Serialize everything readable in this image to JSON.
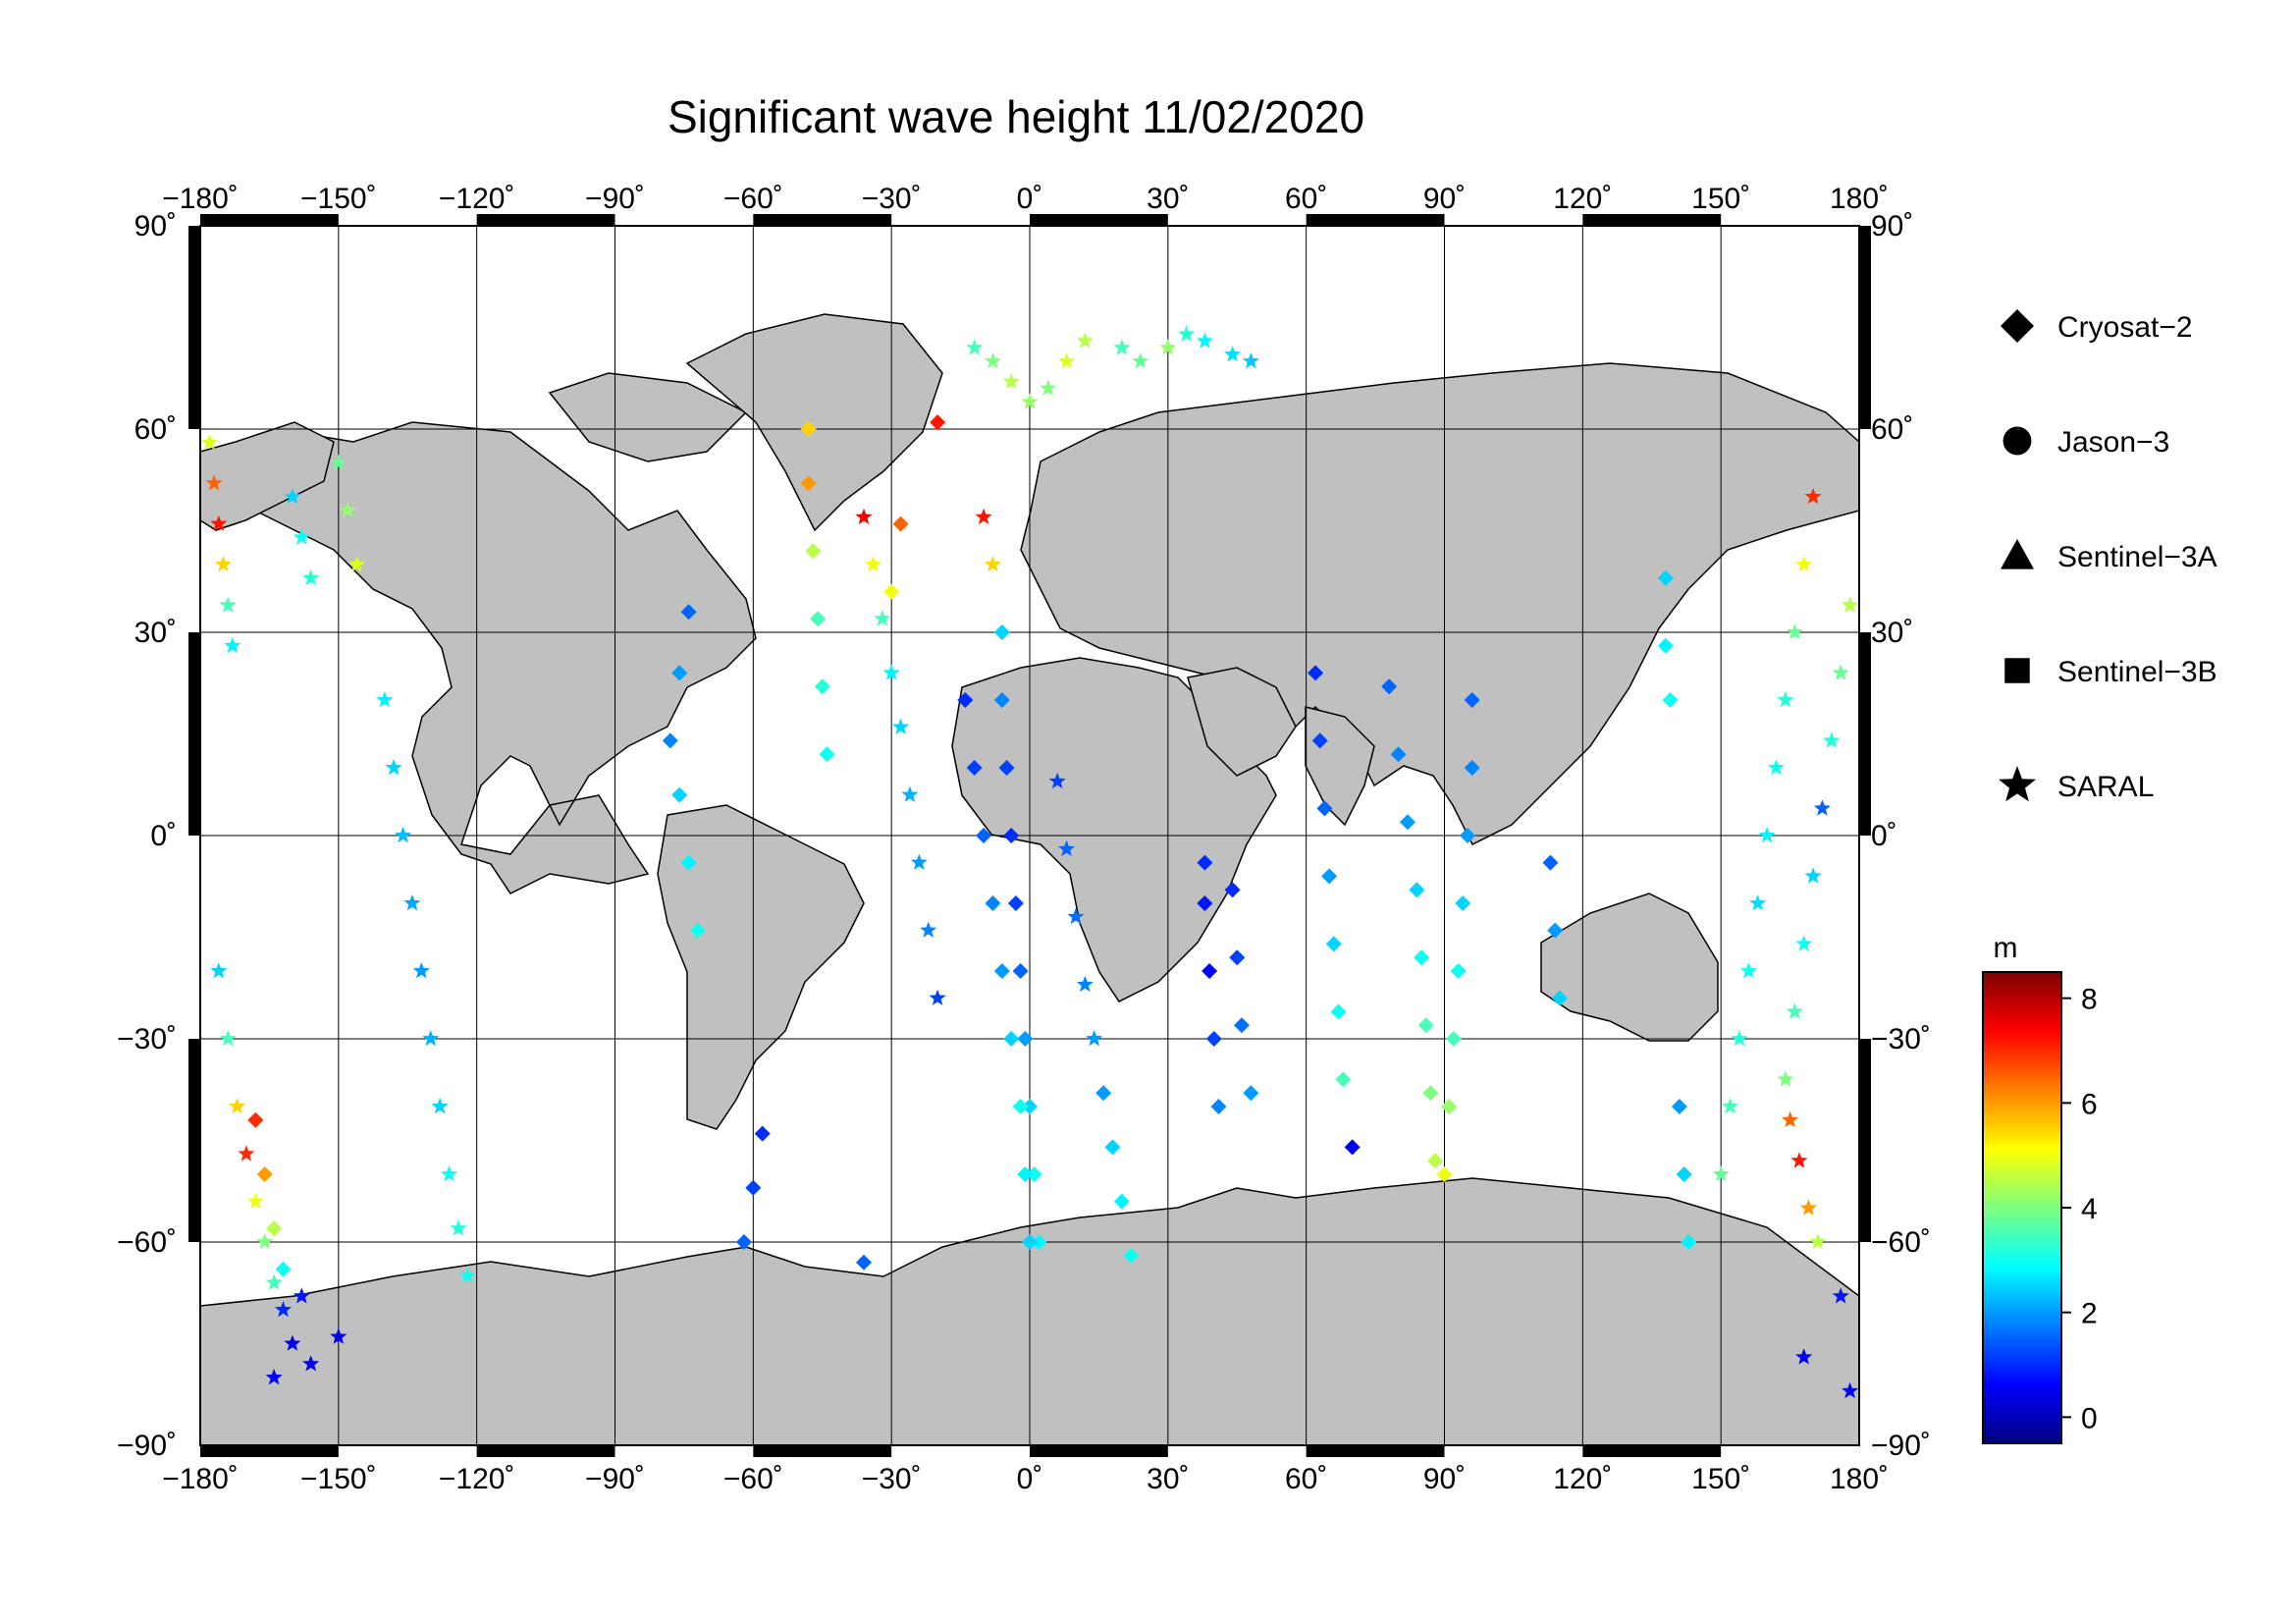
{
  "title": "Significant wave height 11/02/2020",
  "axes": {
    "lon_labels": [
      "−180˚",
      "−150˚",
      "−120˚",
      "−90˚",
      "−60˚",
      "−30˚",
      "0˚",
      "30˚",
      "60˚",
      "90˚",
      "120˚",
      "150˚",
      "180˚"
    ],
    "lat_labels": [
      "90˚",
      "60˚",
      "30˚",
      "0˚",
      "−30˚",
      "−60˚",
      "−90˚"
    ],
    "lon_values": [
      -180,
      -150,
      -120,
      -90,
      -60,
      -30,
      0,
      30,
      60,
      90,
      120,
      150,
      180
    ],
    "lat_values": [
      90,
      60,
      30,
      0,
      -30,
      -60,
      -90
    ]
  },
  "legend": [
    {
      "label": "Cryosat−2",
      "symbol": "diamond-icon"
    },
    {
      "label": "Jason−3",
      "symbol": "circle-icon"
    },
    {
      "label": "Sentinel−3A",
      "symbol": "triangle-icon"
    },
    {
      "label": "Sentinel−3B",
      "symbol": "square-icon"
    },
    {
      "label": "SARAL",
      "symbol": "star-icon"
    }
  ],
  "colorbar": {
    "unit": "m",
    "tick_labels": [
      "8",
      "6",
      "4",
      "2",
      "0"
    ],
    "tick_values": [
      8,
      6,
      4,
      2,
      0
    ],
    "range": [
      -0.5,
      8.5
    ],
    "colormap": [
      "#00007f",
      "#0000ff",
      "#007fff",
      "#00ffff",
      "#7fff7f",
      "#ffff00",
      "#ff7f00",
      "#ff0000",
      "#7f0000"
    ]
  },
  "colors": {
    "land": "#c0c0c0",
    "ocean": "#ffffff",
    "frame": "#000000"
  },
  "chart_data": {
    "type": "scatter",
    "projection": "equirectangular",
    "xlim": [
      -180,
      180
    ],
    "ylim": [
      -90,
      90
    ],
    "grid": true,
    "legend_position": "right",
    "series": [
      {
        "name": "SARAL",
        "marker": "star",
        "points": [
          [
            -178,
            58,
            4.8
          ],
          [
            -177,
            52,
            6.5
          ],
          [
            -176,
            46,
            7.2
          ],
          [
            -175,
            40,
            5.5
          ],
          [
            -174,
            34,
            3.5
          ],
          [
            -173,
            28,
            2.8
          ],
          [
            -160,
            50,
            2.5
          ],
          [
            -158,
            44,
            3.0
          ],
          [
            -156,
            38,
            3.2
          ],
          [
            -150,
            55,
            3.8
          ],
          [
            -148,
            48,
            4.2
          ],
          [
            -146,
            40,
            4.8
          ],
          [
            -140,
            20,
            2.8
          ],
          [
            -138,
            10,
            2.5
          ],
          [
            -136,
            0,
            2.3
          ],
          [
            -134,
            -10,
            2.1
          ],
          [
            -132,
            -20,
            2.0
          ],
          [
            -130,
            -30,
            2.2
          ],
          [
            -128,
            -40,
            2.5
          ],
          [
            -126,
            -50,
            3.0
          ],
          [
            -124,
            -58,
            3.2
          ],
          [
            -122,
            -65,
            3.0
          ],
          [
            -176,
            -20,
            2.5
          ],
          [
            -174,
            -30,
            3.5
          ],
          [
            -172,
            -40,
            5.5
          ],
          [
            -170,
            -47,
            7.0
          ],
          [
            -168,
            -54,
            5.0
          ],
          [
            -166,
            -60,
            4.0
          ],
          [
            -164,
            -66,
            3.5
          ],
          [
            -162,
            -70,
            1.0
          ],
          [
            -158,
            -68,
            0.8
          ],
          [
            -150,
            -74,
            0.5
          ],
          [
            -156,
            -78,
            0.4
          ],
          [
            -164,
            -80,
            0.6
          ],
          [
            -12,
            72,
            3.5
          ],
          [
            -8,
            70,
            4.0
          ],
          [
            -4,
            67,
            4.5
          ],
          [
            0,
            64,
            4.2
          ],
          [
            4,
            66,
            4.0
          ],
          [
            8,
            70,
            4.8
          ],
          [
            12,
            73,
            4.5
          ],
          [
            20,
            72,
            3.5
          ],
          [
            24,
            70,
            3.8
          ],
          [
            30,
            72,
            4.2
          ],
          [
            34,
            74,
            3.2
          ],
          [
            38,
            73,
            2.8
          ],
          [
            44,
            71,
            2.6
          ],
          [
            48,
            70,
            2.4
          ],
          [
            -36,
            47,
            7.5
          ],
          [
            -34,
            40,
            5.0
          ],
          [
            -32,
            32,
            3.5
          ],
          [
            -30,
            24,
            2.8
          ],
          [
            -28,
            16,
            2.5
          ],
          [
            -26,
            6,
            2.2
          ],
          [
            -24,
            -4,
            2.0
          ],
          [
            -22,
            -14,
            1.8
          ],
          [
            -20,
            -24,
            1.2
          ],
          [
            -10,
            47,
            7.2
          ],
          [
            -8,
            40,
            5.5
          ],
          [
            6,
            8,
            1.2
          ],
          [
            8,
            -2,
            1.5
          ],
          [
            10,
            -12,
            1.6
          ],
          [
            12,
            -22,
            1.8
          ],
          [
            14,
            -30,
            2.0
          ],
          [
            170,
            50,
            7.0
          ],
          [
            168,
            40,
            5.0
          ],
          [
            166,
            30,
            3.8
          ],
          [
            164,
            20,
            3.2
          ],
          [
            162,
            10,
            3.0
          ],
          [
            160,
            0,
            2.8
          ],
          [
            158,
            -10,
            2.6
          ],
          [
            156,
            -20,
            3.0
          ],
          [
            154,
            -30,
            3.2
          ],
          [
            152,
            -40,
            3.5
          ],
          [
            150,
            -50,
            3.8
          ],
          [
            178,
            34,
            4.5
          ],
          [
            176,
            24,
            3.8
          ],
          [
            174,
            14,
            3.2
          ],
          [
            172,
            4,
            1.5
          ],
          [
            170,
            -6,
            2.5
          ],
          [
            168,
            -16,
            3.0
          ],
          [
            166,
            -26,
            3.5
          ],
          [
            164,
            -36,
            4.0
          ],
          [
            165,
            -42,
            6.5
          ],
          [
            167,
            -48,
            7.2
          ],
          [
            169,
            -55,
            6.0
          ],
          [
            171,
            -60,
            4.5
          ],
          [
            -160,
            -75,
            0.5
          ],
          [
            168,
            -77,
            0.5
          ],
          [
            178,
            -82,
            0.6
          ],
          [
            176,
            -68,
            0.8
          ]
        ]
      },
      {
        "name": "Cryosat-2",
        "marker": "diamond",
        "points": [
          [
            -48,
            60,
            5.5
          ],
          [
            -48,
            52,
            6.0
          ],
          [
            -47,
            42,
            4.5
          ],
          [
            -46,
            32,
            3.5
          ],
          [
            -45,
            22,
            3.2
          ],
          [
            -44,
            12,
            3.0
          ],
          [
            -20,
            61,
            7.2
          ],
          [
            -28,
            46,
            6.5
          ],
          [
            -30,
            36,
            5.0
          ],
          [
            -6,
            30,
            2.5
          ],
          [
            -6,
            20,
            1.8
          ],
          [
            -5,
            10,
            1.2
          ],
          [
            -4,
            0,
            1.0
          ],
          [
            -3,
            -10,
            1.2
          ],
          [
            -2,
            -20,
            1.5
          ],
          [
            -1,
            -30,
            2.0
          ],
          [
            0,
            -40,
            2.5
          ],
          [
            1,
            -50,
            3.0
          ],
          [
            2,
            -60,
            2.8
          ],
          [
            -14,
            20,
            1.0
          ],
          [
            -12,
            10,
            1.2
          ],
          [
            -10,
            0,
            1.5
          ],
          [
            -8,
            -10,
            1.8
          ],
          [
            -6,
            -20,
            2.0
          ],
          [
            -4,
            -30,
            2.5
          ],
          [
            -2,
            -40,
            3.0
          ],
          [
            -1,
            -50,
            2.8
          ],
          [
            0,
            -60,
            2.5
          ],
          [
            16,
            -38,
            2.0
          ],
          [
            18,
            -46,
            2.5
          ],
          [
            20,
            -54,
            2.8
          ],
          [
            22,
            -62,
            3.0
          ],
          [
            38,
            -4,
            1.0
          ],
          [
            38,
            -10,
            0.8
          ],
          [
            39,
            -20,
            0.6
          ],
          [
            40,
            -30,
            1.2
          ],
          [
            41,
            -40,
            1.8
          ],
          [
            44,
            -8,
            1.0
          ],
          [
            45,
            -18,
            1.2
          ],
          [
            46,
            -28,
            1.6
          ],
          [
            48,
            -38,
            2.0
          ],
          [
            62,
            24,
            1.0
          ],
          [
            63,
            14,
            1.2
          ],
          [
            64,
            4,
            1.5
          ],
          [
            65,
            -6,
            2.0
          ],
          [
            66,
            -16,
            2.5
          ],
          [
            67,
            -26,
            3.0
          ],
          [
            68,
            -36,
            3.5
          ],
          [
            70,
            -46,
            0.5
          ],
          [
            78,
            22,
            1.5
          ],
          [
            80,
            12,
            1.8
          ],
          [
            82,
            2,
            2.0
          ],
          [
            84,
            -8,
            2.5
          ],
          [
            85,
            -18,
            3.0
          ],
          [
            86,
            -28,
            3.5
          ],
          [
            87,
            -38,
            4.0
          ],
          [
            88,
            -48,
            4.5
          ],
          [
            96,
            20,
            1.5
          ],
          [
            96,
            10,
            1.8
          ],
          [
            95,
            0,
            2.0
          ],
          [
            94,
            -10,
            2.5
          ],
          [
            93,
            -20,
            3.0
          ],
          [
            92,
            -30,
            3.5
          ],
          [
            91,
            -40,
            4.2
          ],
          [
            90,
            -50,
            5.0
          ],
          [
            138,
            38,
            2.5
          ],
          [
            138,
            28,
            2.8
          ],
          [
            139,
            20,
            3.0
          ],
          [
            141,
            -40,
            2.0
          ],
          [
            142,
            -50,
            2.5
          ],
          [
            143,
            -60,
            2.8
          ],
          [
            113,
            -4,
            1.5
          ],
          [
            114,
            -14,
            2.0
          ],
          [
            115,
            -24,
            2.5
          ],
          [
            -36,
            -63,
            1.5
          ],
          [
            -58,
            -44,
            1.0
          ],
          [
            -60,
            -52,
            1.2
          ],
          [
            -62,
            -60,
            1.5
          ],
          [
            -74,
            33,
            1.5
          ],
          [
            -76,
            24,
            2.0
          ],
          [
            -78,
            14,
            1.8
          ],
          [
            -76,
            6,
            2.5
          ],
          [
            -74,
            -4,
            2.8
          ],
          [
            -72,
            -14,
            3.0
          ],
          [
            -168,
            -42,
            7.0
          ],
          [
            -166,
            -50,
            6.0
          ],
          [
            -164,
            -58,
            4.5
          ],
          [
            -162,
            -64,
            3.0
          ]
        ]
      }
    ]
  }
}
